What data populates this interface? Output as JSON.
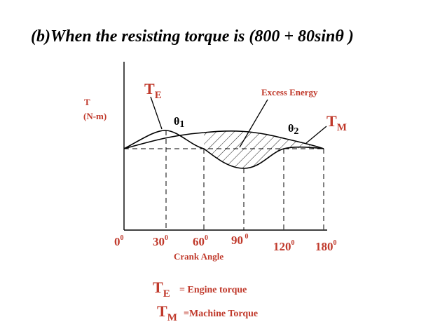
{
  "title": "(b)When the resisting torque is (800 + 80sinθ )",
  "yaxis": {
    "label_line1": "T",
    "label_line2": "(N-m)"
  },
  "xaxis": {
    "label": "Crank Angle",
    "ticks": [
      {
        "value": "0",
        "sup": "0"
      },
      {
        "value": "30",
        "sup": "0"
      },
      {
        "value": "60",
        "sup": "0"
      },
      {
        "value": "90",
        "sup": " 0"
      },
      {
        "value": "120",
        "sup": "0"
      },
      {
        "value": "180",
        "sup": "0"
      }
    ]
  },
  "curves": {
    "engine": {
      "main": "T",
      "sub": "E"
    },
    "machine": {
      "main": "T",
      "sub": "M"
    }
  },
  "annotations": {
    "excess_energy": "Excess Energy",
    "theta1": {
      "main": "θ",
      "sub": "1"
    },
    "theta2": {
      "main": "θ",
      "sub": "2"
    }
  },
  "legend": [
    {
      "main": "T",
      "sub": "E",
      "desc": "= Engine torque"
    },
    {
      "main": "T",
      "sub": "M",
      "desc": "=Machine Torque"
    }
  ],
  "colors": {
    "label": "#c0392b",
    "line": "#000000"
  }
}
